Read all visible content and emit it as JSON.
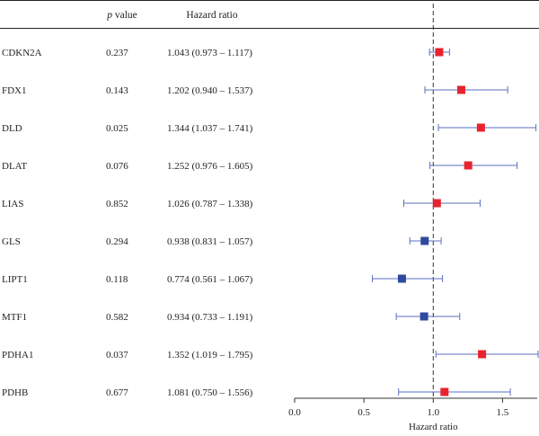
{
  "chart_data": {
    "type": "forest",
    "headers": {
      "gene": "",
      "p_italic": "p",
      "p_rest": " value",
      "hr": "Hazard ratio"
    },
    "xlabel": "Hazard ratio",
    "xlim": [
      0.0,
      1.75
    ],
    "xticks": [
      0.0,
      0.5,
      1.0,
      1.5
    ],
    "xtick_labels": [
      "0.0",
      "0.5",
      "1.0",
      "1.5"
    ],
    "reference_line": 1.0,
    "colors": {
      "risk": "#e8232e",
      "protective": "#2e4a9e",
      "ci_line": "#5a6fc0"
    },
    "rows": [
      {
        "gene": "CDKN2A",
        "p": "0.237",
        "hr_text": "1.043 (0.973 – 1.117)",
        "hr": 1.043,
        "lo": 0.973,
        "hi": 1.117
      },
      {
        "gene": "FDX1",
        "p": "0.143",
        "hr_text": "1.202 (0.940 – 1.537)",
        "hr": 1.202,
        "lo": 0.94,
        "hi": 1.537
      },
      {
        "gene": "DLD",
        "p": "0.025",
        "hr_text": "1.344 (1.037 – 1.741)",
        "hr": 1.344,
        "lo": 1.037,
        "hi": 1.741
      },
      {
        "gene": "DLAT",
        "p": "0.076",
        "hr_text": "1.252 (0.976 – 1.605)",
        "hr": 1.252,
        "lo": 0.976,
        "hi": 1.605
      },
      {
        "gene": "LIAS",
        "p": "0.852",
        "hr_text": "1.026 (0.787 – 1.338)",
        "hr": 1.026,
        "lo": 0.787,
        "hi": 1.338
      },
      {
        "gene": "GLS",
        "p": "0.294",
        "hr_text": "0.938 (0.831 – 1.057)",
        "hr": 0.938,
        "lo": 0.831,
        "hi": 1.057
      },
      {
        "gene": "LIPT1",
        "p": "0.118",
        "hr_text": "0.774 (0.561 – 1.067)",
        "hr": 0.774,
        "lo": 0.561,
        "hi": 1.067
      },
      {
        "gene": "MTF1",
        "p": "0.582",
        "hr_text": "0.934 (0.733 – 1.191)",
        "hr": 0.934,
        "lo": 0.733,
        "hi": 1.191
      },
      {
        "gene": "PDHA1",
        "p": "0.037",
        "hr_text": "1.352 (1.019 – 1.795)",
        "hr": 1.352,
        "lo": 1.019,
        "hi": 1.795
      },
      {
        "gene": "PDHB",
        "p": "0.677",
        "hr_text": "1.081 (0.750 – 1.556)",
        "hr": 1.081,
        "lo": 0.75,
        "hi": 1.556
      }
    ]
  }
}
